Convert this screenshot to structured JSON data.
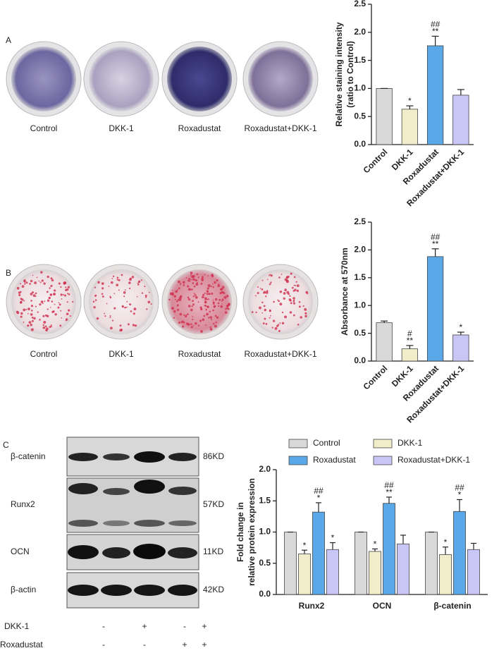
{
  "panels": [
    "A",
    "B",
    "C"
  ],
  "wells": [
    {
      "labels": [
        "Control",
        "DKK-1",
        "Roxadustat",
        "Roxadustat+DKK-1"
      ]
    },
    {
      "labels": [
        "Control",
        "DKK-1",
        "Roxadustat",
        "Roxadustat+DKK-1"
      ]
    }
  ],
  "blot": {
    "rows": [
      {
        "protein": "β-catenin",
        "size": "86KD"
      },
      {
        "protein": "Runx2",
        "size": "57KD"
      },
      {
        "protein": "OCN",
        "size": "11KD"
      },
      {
        "protein": "β-actin",
        "size": "42KD"
      }
    ],
    "treatments": [
      {
        "name": "DKK-1",
        "signs": [
          "-",
          "+",
          "-",
          "+"
        ]
      },
      {
        "name": "Roxadustat",
        "signs": [
          "-",
          "-",
          "+",
          "+"
        ]
      }
    ]
  },
  "chart_data": [
    {
      "type": "bar",
      "ylabel": [
        "Relative staining intensity",
        "(ratio to Control)"
      ],
      "categories": [
        "Control",
        "DKK-1",
        "Roxadustat",
        "Roxadustat+DKK-1"
      ],
      "values": [
        1.0,
        0.63,
        1.76,
        0.88
      ],
      "errors": [
        0,
        0.06,
        0.17,
        0.1
      ],
      "annotations": [
        null,
        [
          "*"
        ],
        [
          "##",
          "**"
        ],
        null
      ],
      "colors": [
        "#d9d9d9",
        "#f1ecc9",
        "#5aa8e8",
        "#c9c5f5"
      ],
      "ylim": [
        0,
        2.5
      ],
      "yticks": [
        {
          "value": 0,
          "label": "0.0"
        },
        0.5,
        {
          "value": 1,
          "label": "1.0"
        },
        1.5,
        {
          "value": 2,
          "label": "2.0"
        },
        2.5
      ]
    },
    {
      "type": "bar",
      "ylabel": [
        "Absorbance at 570nm"
      ],
      "categories": [
        "Control",
        "DKK-1",
        "Roxadustat",
        "Roxadustat+DKK-1"
      ],
      "values": [
        0.69,
        0.22,
        1.88,
        0.47
      ],
      "errors": [
        0.03,
        0.06,
        0.14,
        0.05
      ],
      "annotations": [
        null,
        [
          "#",
          "**"
        ],
        [
          "##",
          "**"
        ],
        [
          "*"
        ]
      ],
      "colors": [
        "#d9d9d9",
        "#f1ecc9",
        "#5aa8e8",
        "#c9c5f5"
      ],
      "ylim": [
        0,
        2.5
      ],
      "yticks": [
        {
          "value": 0,
          "label": "0.0"
        },
        0.5,
        {
          "value": 1,
          "label": "1.0"
        },
        1.5,
        {
          "value": 2,
          "label": "2.0"
        },
        2.5
      ]
    },
    {
      "type": "bar",
      "ylabel": [
        "Fold change in",
        "relative protein expression"
      ],
      "categories": [
        "Runx2",
        "OCN",
        "β-catenin"
      ],
      "series": [
        {
          "name": "Control",
          "color": "#d9d9d9",
          "values": [
            1.0,
            1.0,
            1.0
          ],
          "errors": [
            0,
            0,
            0
          ],
          "annotations": [
            null,
            null,
            null
          ]
        },
        {
          "name": "DKK-1",
          "color": "#f1ecc9",
          "values": [
            0.65,
            0.69,
            0.64
          ],
          "errors": [
            0.06,
            0.04,
            0.12
          ],
          "annotations": [
            [
              "*"
            ],
            [
              "*"
            ],
            [
              "*"
            ]
          ]
        },
        {
          "name": "Roxadustat",
          "color": "#5aa8e8",
          "values": [
            1.32,
            1.46,
            1.33
          ],
          "errors": [
            0.15,
            0.1,
            0.19
          ],
          "annotations": [
            [
              "##",
              "*"
            ],
            [
              "##",
              "**"
            ],
            [
              "##",
              "*"
            ]
          ]
        },
        {
          "name": "Roxadustat+DKK-1",
          "color": "#c9c5f5",
          "values": [
            0.72,
            0.81,
            0.72
          ],
          "errors": [
            0.11,
            0.14,
            0.1
          ],
          "annotations": [
            [
              "*"
            ],
            null,
            null
          ]
        }
      ],
      "ylim": [
        0,
        2.0
      ],
      "yticks": [
        {
          "value": 0,
          "label": "0.0"
        },
        0.5,
        {
          "value": 1,
          "label": "1.0"
        },
        1.5,
        {
          "value": 2,
          "label": "2.0"
        }
      ]
    }
  ]
}
